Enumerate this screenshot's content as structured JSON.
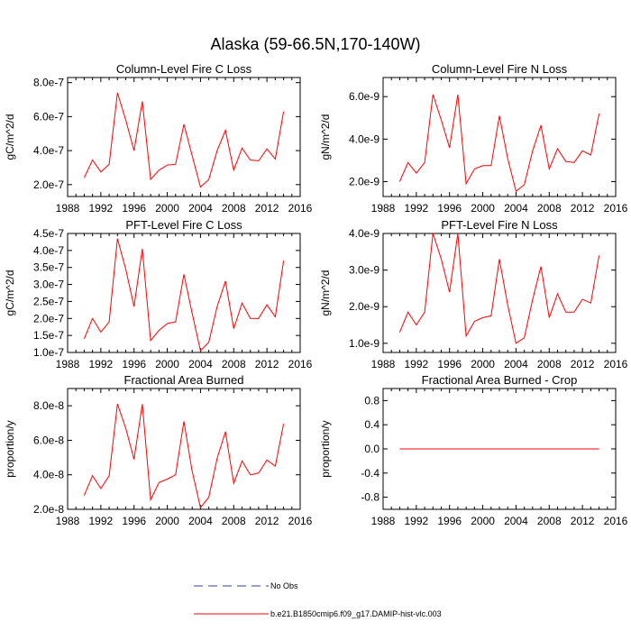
{
  "figure_title": "Alaska (59-66.5N,170-140W)",
  "colors": {
    "model": "#ff0000",
    "obs": "#3a3ab0",
    "axis": "#000000"
  },
  "legend": [
    {
      "label": "No Obs",
      "style": "dashed",
      "color": "#3a3ab0"
    },
    {
      "label": "b.e21.B1850cmip6.f09_g17.DAMIP-hist-vlc.003",
      "style": "solid",
      "color": "#ff0000"
    }
  ],
  "chart_data": [
    {
      "type": "line",
      "title": "Column-Level Fire C Loss",
      "ylabel": "gC/m^2/d",
      "xlim": [
        1988,
        2016
      ],
      "xticks": [
        "1988",
        "1992",
        "1996",
        "2000",
        "2004",
        "2008",
        "2012",
        "2016"
      ],
      "ylim": [
        1.3e-07,
        8.3e-07
      ],
      "yticks": [
        {
          "v": 2e-07,
          "label": "2.0e-7"
        },
        {
          "v": 4e-07,
          "label": "4.0e-7"
        },
        {
          "v": 6e-07,
          "label": "6.0e-7"
        },
        {
          "v": 8e-07,
          "label": "8.0e-7"
        }
      ],
      "x": [
        1990,
        1991,
        1992,
        1993,
        1994,
        1995,
        1996,
        1997,
        1998,
        1999,
        2000,
        2001,
        2002,
        2003,
        2004,
        2005,
        2006,
        2007,
        2008,
        2009,
        2010,
        2011,
        2012,
        2013,
        2014
      ],
      "series": [
        {
          "name": "b.e21.B1850cmip6.f09_g17.DAMIP-hist-vlc.003",
          "values": [
            2.4e-07,
            3.45e-07,
            2.75e-07,
            3.2e-07,
            7.4e-07,
            5.8e-07,
            4e-07,
            6.9e-07,
            2.3e-07,
            2.85e-07,
            3.15e-07,
            3.2e-07,
            5.55e-07,
            3.7e-07,
            1.85e-07,
            2.3e-07,
            4e-07,
            5.2e-07,
            2.85e-07,
            4.15e-07,
            3.45e-07,
            3.4e-07,
            4.1e-07,
            3.5e-07,
            6.3e-07
          ]
        }
      ]
    },
    {
      "type": "line",
      "title": "Column-Level Fire N Loss",
      "ylabel": "gN/m^2/d",
      "xlim": [
        1988,
        2016
      ],
      "xticks": [
        "1988",
        "1992",
        "1996",
        "2000",
        "2004",
        "2008",
        "2012",
        "2016"
      ],
      "ylim": [
        1.3e-09,
        6.9e-09
      ],
      "yticks": [
        {
          "v": 2e-09,
          "label": "2.0e-9"
        },
        {
          "v": 4e-09,
          "label": "4.0e-9"
        },
        {
          "v": 6e-09,
          "label": "6.0e-9"
        }
      ],
      "x": [
        1990,
        1991,
        1992,
        1993,
        1994,
        1995,
        1996,
        1997,
        1998,
        1999,
        2000,
        2001,
        2002,
        2003,
        2004,
        2005,
        2006,
        2007,
        2008,
        2009,
        2010,
        2011,
        2012,
        2013,
        2014
      ],
      "series": [
        {
          "name": "b.e21.B1850cmip6.f09_g17.DAMIP-hist-vlc.003",
          "values": [
            2e-09,
            2.9e-09,
            2.4e-09,
            2.9e-09,
            6.1e-09,
            4.9e-09,
            3.6e-09,
            6.1e-09,
            1.9e-09,
            2.6e-09,
            2.75e-09,
            2.75e-09,
            5.1e-09,
            3.1e-09,
            1.55e-09,
            1.85e-09,
            3.45e-09,
            4.65e-09,
            2.6e-09,
            3.55e-09,
            2.95e-09,
            2.9e-09,
            3.45e-09,
            3.25e-09,
            5.2e-09
          ]
        }
      ]
    },
    {
      "type": "line",
      "title": "PFT-Level Fire C Loss",
      "ylabel": "gC/m^2/d",
      "xlim": [
        1988,
        2016
      ],
      "xticks": [
        "1988",
        "1992",
        "1996",
        "2000",
        "2004",
        "2008",
        "2012",
        "2016"
      ],
      "ylim": [
        1e-07,
        4.5e-07
      ],
      "yticks": [
        {
          "v": 1e-07,
          "label": "1.0e-7"
        },
        {
          "v": 1.5e-07,
          "label": "1.5e-7"
        },
        {
          "v": 2e-07,
          "label": "2.0e-7"
        },
        {
          "v": 2.5e-07,
          "label": "2.5e-7"
        },
        {
          "v": 3e-07,
          "label": "3.0e-7"
        },
        {
          "v": 3.5e-07,
          "label": "3.5e-7"
        },
        {
          "v": 4e-07,
          "label": "4.0e-7"
        },
        {
          "v": 4.5e-07,
          "label": "4.5e-7"
        }
      ],
      "x": [
        1990,
        1991,
        1992,
        1993,
        1994,
        1995,
        1996,
        1997,
        1998,
        1999,
        2000,
        2001,
        2002,
        2003,
        2004,
        2005,
        2006,
        2007,
        2008,
        2009,
        2010,
        2011,
        2012,
        2013,
        2014
      ],
      "series": [
        {
          "name": "b.e21.B1850cmip6.f09_g17.DAMIP-hist-vlc.003",
          "values": [
            1.4e-07,
            2e-07,
            1.6e-07,
            1.9e-07,
            4.35e-07,
            3.45e-07,
            2.35e-07,
            4.05e-07,
            1.35e-07,
            1.65e-07,
            1.85e-07,
            1.9e-07,
            3.3e-07,
            2.15e-07,
            1.05e-07,
            1.3e-07,
            2.35e-07,
            3.1e-07,
            1.7e-07,
            2.45e-07,
            2e-07,
            2e-07,
            2.4e-07,
            2.05e-07,
            3.7e-07
          ]
        }
      ]
    },
    {
      "type": "line",
      "title": "PFT-Level Fire N Loss",
      "ylabel": "gN/m^2/d",
      "xlim": [
        1988,
        2016
      ],
      "xticks": [
        "1988",
        "1992",
        "1996",
        "2000",
        "2004",
        "2008",
        "2012",
        "2016"
      ],
      "ylim": [
        7.5e-10,
        4e-09
      ],
      "yticks": [
        {
          "v": 1e-09,
          "label": "1.0e-9"
        },
        {
          "v": 2e-09,
          "label": "2.0e-9"
        },
        {
          "v": 3e-09,
          "label": "3.0e-9"
        },
        {
          "v": 4e-09,
          "label": "4.0e-9"
        }
      ],
      "x": [
        1990,
        1991,
        1992,
        1993,
        1994,
        1995,
        1996,
        1997,
        1998,
        1999,
        2000,
        2001,
        2002,
        2003,
        2004,
        2005,
        2006,
        2007,
        2008,
        2009,
        2010,
        2011,
        2012,
        2013,
        2014
      ],
      "series": [
        {
          "name": "b.e21.B1850cmip6.f09_g17.DAMIP-hist-vlc.003",
          "values": [
            1.3e-09,
            1.85e-09,
            1.5e-09,
            1.85e-09,
            4e-09,
            3.3e-09,
            2.4e-09,
            4e-09,
            1.2e-09,
            1.6e-09,
            1.7e-09,
            1.75e-09,
            3.3e-09,
            2.05e-09,
            1e-09,
            1.15e-09,
            2.2e-09,
            3.1e-09,
            1.7e-09,
            2.35e-09,
            1.85e-09,
            1.85e-09,
            2.2e-09,
            2.1e-09,
            3.4e-09
          ]
        }
      ]
    },
    {
      "type": "line",
      "title": "Fractional Area Burned",
      "ylabel": "proportion/y",
      "xlim": [
        1988,
        2016
      ],
      "xticks": [
        "1988",
        "1992",
        "1996",
        "2000",
        "2004",
        "2008",
        "2012",
        "2016"
      ],
      "ylim": [
        2e-08,
        9e-08
      ],
      "yticks": [
        {
          "v": 2e-08,
          "label": "2.0e-8"
        },
        {
          "v": 4e-08,
          "label": "4.0e-8"
        },
        {
          "v": 6e-08,
          "label": "6.0e-8"
        },
        {
          "v": 8e-08,
          "label": "8.0e-8"
        }
      ],
      "x": [
        1990,
        1991,
        1992,
        1993,
        1994,
        1995,
        1996,
        1997,
        1998,
        1999,
        2000,
        2001,
        2002,
        2003,
        2004,
        2005,
        2006,
        2007,
        2008,
        2009,
        2010,
        2011,
        2012,
        2013,
        2014
      ],
      "series": [
        {
          "name": "b.e21.B1850cmip6.f09_g17.DAMIP-hist-vlc.003",
          "values": [
            2.8e-08,
            3.95e-08,
            3.2e-08,
            3.95e-08,
            8.1e-08,
            6.7e-08,
            4.9e-08,
            8.1e-08,
            2.55e-08,
            3.55e-08,
            3.75e-08,
            4e-08,
            7.1e-08,
            4.2e-08,
            2.1e-08,
            2.7e-08,
            4.95e-08,
            6.5e-08,
            3.5e-08,
            4.8e-08,
            4e-08,
            4.1e-08,
            4.85e-08,
            4.5e-08,
            6.95e-08
          ]
        }
      ]
    },
    {
      "type": "line",
      "title": "Fractional Area Burned - Crop",
      "ylabel": "proportion/y",
      "xlim": [
        1988,
        2016
      ],
      "xticks": [
        "1988",
        "1992",
        "1996",
        "2000",
        "2004",
        "2008",
        "2012",
        "2016"
      ],
      "ylim": [
        -1.0,
        1.0
      ],
      "yticks": [
        {
          "v": -0.8,
          "label": "-0.8"
        },
        {
          "v": -0.4,
          "label": "-0.4"
        },
        {
          "v": 0,
          "label": "0.0"
        },
        {
          "v": 0.4,
          "label": "0.4"
        },
        {
          "v": 0.8,
          "label": "0.8"
        }
      ],
      "x": [
        1990,
        1991,
        1992,
        1993,
        1994,
        1995,
        1996,
        1997,
        1998,
        1999,
        2000,
        2001,
        2002,
        2003,
        2004,
        2005,
        2006,
        2007,
        2008,
        2009,
        2010,
        2011,
        2012,
        2013,
        2014
      ],
      "series": [
        {
          "name": "b.e21.B1850cmip6.f09_g17.DAMIP-hist-vlc.003",
          "values": [
            0,
            0,
            0,
            0,
            0,
            0,
            0,
            0,
            0,
            0,
            0,
            0,
            0,
            0,
            0,
            0,
            0,
            0,
            0,
            0,
            0,
            0,
            0,
            0,
            0
          ]
        }
      ]
    }
  ]
}
